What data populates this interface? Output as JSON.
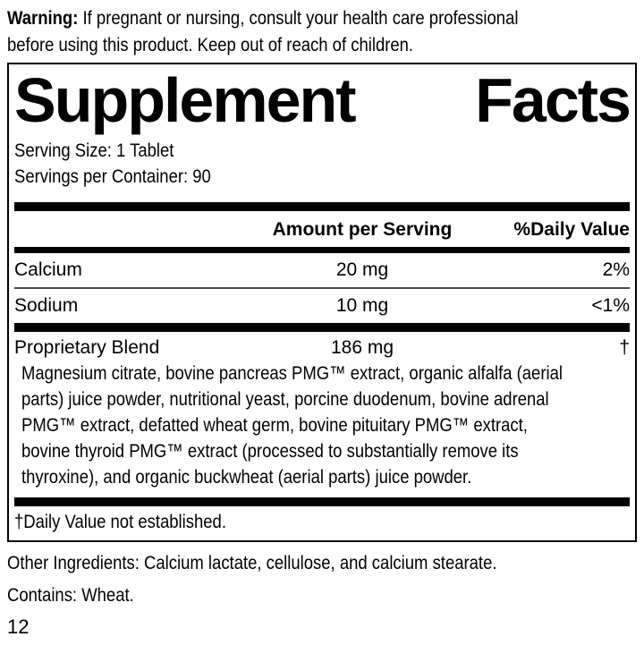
{
  "warning": {
    "label": "Warning:",
    "line1_rest": " If pregnant or nursing, consult your health care professional",
    "line2": "before using this product. Keep out of reach of children."
  },
  "panel": {
    "title_word1": "Supplement",
    "title_word2": "Facts",
    "serving_size": "Serving Size: 1 Tablet",
    "servings_per_container": "Servings per Container: 90",
    "header": {
      "amount": "Amount per Serving",
      "dv": "%Daily Value"
    },
    "rows": [
      {
        "name": "Calcium",
        "amount": "20 mg",
        "dv": "2%"
      },
      {
        "name": "Sodium",
        "amount": "10 mg",
        "dv": "<1%"
      }
    ],
    "blend": {
      "name": "Proprietary Blend",
      "amount": "186 mg",
      "dv": "†",
      "description_lines": [
        "Magnesium citrate, bovine pancreas PMG™ extract, organic alfalfa (aerial",
        "parts) juice powder, nutritional yeast, porcine duodenum, bovine adrenal",
        "PMG™ extract, defatted wheat germ, bovine pituitary PMG™ extract,",
        "bovine thyroid PMG™ extract (processed to substantially remove its",
        "thyroxine), and organic buckwheat (aerial parts) juice powder."
      ]
    },
    "footnote": "†Daily Value not established."
  },
  "other_ingredients": "Other Ingredients: Calcium lactate, cellulose, and calcium stearate.",
  "contains": "Contains: Wheat.",
  "page_number": "12",
  "colors": {
    "ink": "#000000",
    "background": "#ffffff",
    "thin_rule": "#4a4a4a"
  }
}
